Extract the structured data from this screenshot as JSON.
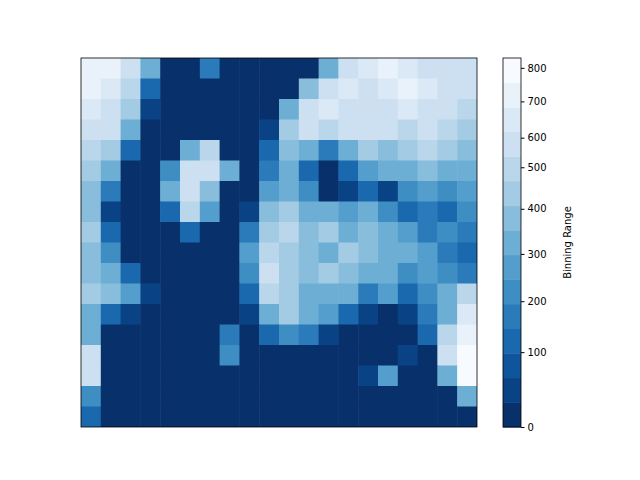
{
  "chart_data": {
    "type": "heatmap",
    "tick_labels": false,
    "z": [
      [
        750,
        700,
        600,
        300,
        0,
        0,
        150,
        0,
        0,
        0,
        0,
        0,
        350,
        550,
        650,
        700,
        650,
        600,
        600,
        550
      ],
      [
        700,
        650,
        500,
        100,
        0,
        0,
        0,
        0,
        0,
        0,
        0,
        400,
        600,
        650,
        600,
        650,
        700,
        650,
        600,
        550
      ],
      [
        650,
        600,
        450,
        50,
        0,
        0,
        0,
        0,
        0,
        0,
        300,
        600,
        650,
        600,
        550,
        600,
        650,
        600,
        550,
        500
      ],
      [
        600,
        550,
        350,
        0,
        0,
        0,
        0,
        0,
        0,
        50,
        450,
        550,
        500,
        550,
        600,
        550,
        500,
        550,
        500,
        450
      ],
      [
        500,
        450,
        100,
        0,
        0,
        300,
        500,
        0,
        0,
        100,
        400,
        300,
        150,
        350,
        450,
        400,
        450,
        500,
        450,
        400
      ],
      [
        450,
        300,
        0,
        0,
        200,
        550,
        600,
        300,
        0,
        150,
        300,
        100,
        0,
        100,
        250,
        350,
        300,
        400,
        350,
        300
      ],
      [
        400,
        150,
        0,
        0,
        300,
        600,
        400,
        0,
        0,
        250,
        350,
        200,
        0,
        50,
        100,
        50,
        200,
        250,
        200,
        250
      ],
      [
        400,
        50,
        0,
        0,
        100,
        500,
        250,
        0,
        50,
        400,
        450,
        350,
        300,
        250,
        350,
        200,
        100,
        150,
        100,
        200
      ],
      [
        450,
        100,
        0,
        0,
        0,
        100,
        0,
        0,
        150,
        450,
        500,
        400,
        450,
        350,
        400,
        300,
        250,
        150,
        200,
        150
      ],
      [
        400,
        200,
        0,
        0,
        0,
        0,
        0,
        0,
        250,
        500,
        450,
        400,
        300,
        450,
        400,
        350,
        300,
        250,
        150,
        100
      ],
      [
        400,
        350,
        100,
        0,
        0,
        0,
        0,
        0,
        200,
        550,
        450,
        400,
        450,
        400,
        350,
        300,
        200,
        250,
        200,
        150
      ],
      [
        450,
        400,
        250,
        50,
        0,
        0,
        0,
        0,
        100,
        500,
        450,
        350,
        300,
        300,
        150,
        250,
        100,
        200,
        300,
        500
      ],
      [
        300,
        100,
        50,
        0,
        0,
        0,
        0,
        0,
        50,
        350,
        450,
        350,
        250,
        100,
        50,
        0,
        50,
        150,
        350,
        650
      ],
      [
        300,
        0,
        0,
        0,
        0,
        0,
        0,
        150,
        0,
        100,
        200,
        150,
        50,
        0,
        0,
        0,
        0,
        100,
        500,
        750
      ],
      [
        600,
        0,
        0,
        0,
        0,
        0,
        0,
        200,
        0,
        0,
        0,
        0,
        0,
        0,
        0,
        0,
        50,
        0,
        550,
        800
      ],
      [
        550,
        0,
        0,
        0,
        0,
        0,
        0,
        0,
        0,
        0,
        0,
        0,
        0,
        0,
        50,
        250,
        0,
        0,
        350,
        800
      ],
      [
        200,
        0,
        0,
        0,
        0,
        0,
        0,
        0,
        0,
        0,
        0,
        0,
        0,
        0,
        0,
        0,
        0,
        0,
        0,
        300
      ],
      [
        100,
        0,
        0,
        0,
        0,
        0,
        0,
        0,
        0,
        0,
        0,
        0,
        0,
        0,
        0,
        0,
        0,
        0,
        0,
        0
      ]
    ],
    "colorbar_label": "Binning Range",
    "colorbar_range": [
      0,
      830
    ],
    "colorbar_boundaries": [
      0,
      33,
      65,
      98,
      145,
      194,
      247,
      298,
      353,
      407,
      462,
      530,
      622,
      683,
      755,
      830
    ],
    "colorbar_ticks": [
      0,
      100,
      200,
      300,
      400,
      500,
      600,
      700,
      800
    ]
  }
}
